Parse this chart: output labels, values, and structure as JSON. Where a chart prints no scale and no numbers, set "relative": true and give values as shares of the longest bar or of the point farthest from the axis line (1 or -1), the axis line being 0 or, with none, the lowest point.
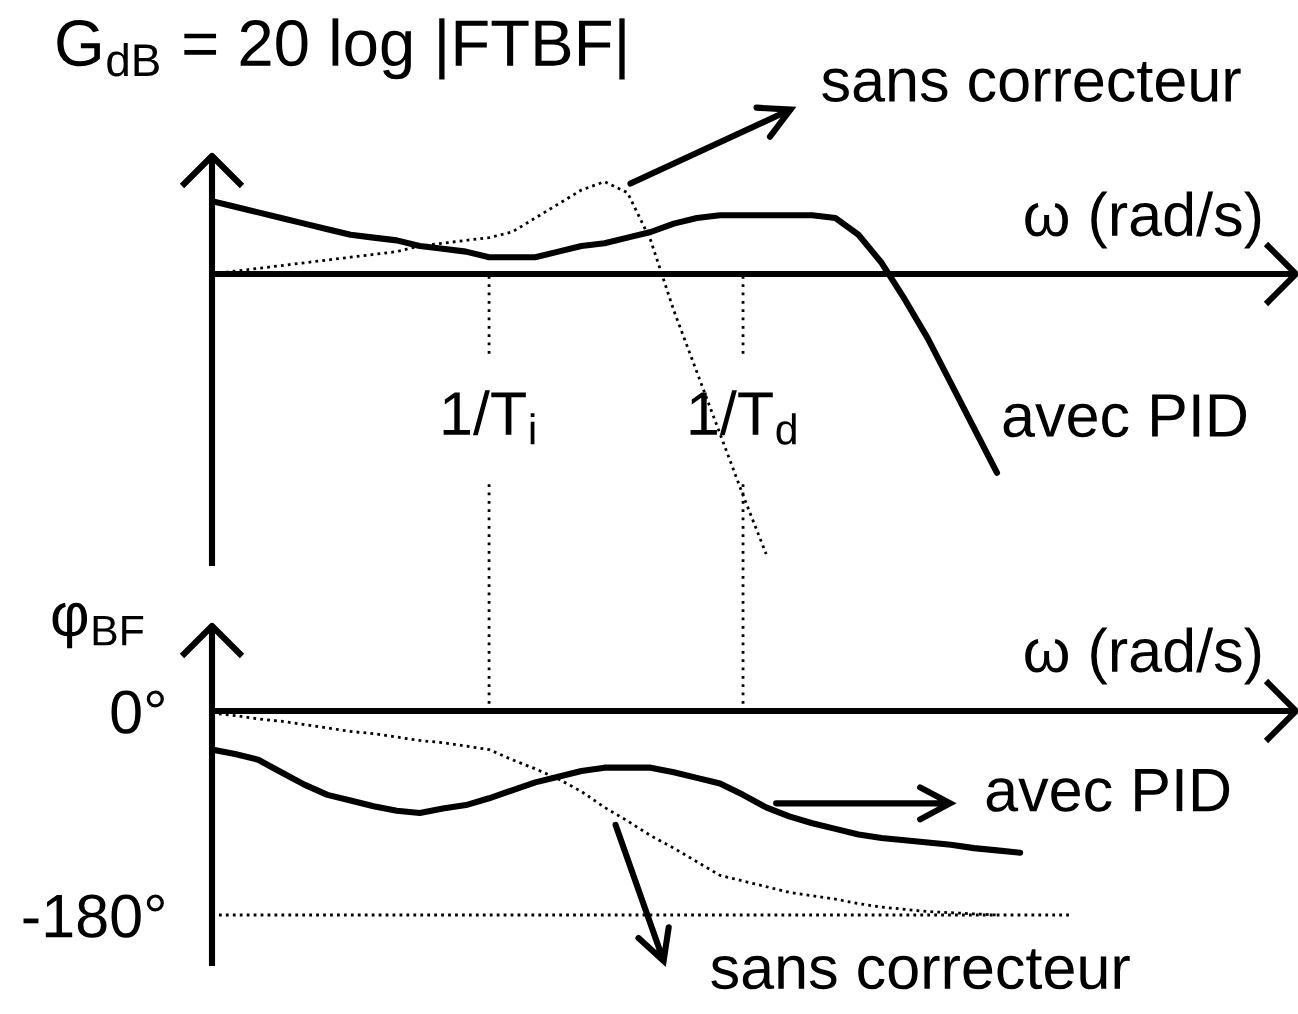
{
  "chart_data": [
    {
      "type": "line",
      "ylabel": "G$_{dB}$ = 20 log |FTBF|",
      "xlabel": "ω (rad/s)",
      "relative": true,
      "grid": "x",
      "tick_labels": "x",
      "annotations": [
        "sans correcteur",
        "avec PID"
      ],
      "categories": [
        null,
        null,
        null,
        null,
        null,
        null,
        null,
        null,
        null,
        null,
        null,
        null,
        "1/T$_{i}$",
        null,
        null,
        null,
        null,
        null,
        null,
        null,
        null,
        null,
        null,
        "1/T$_{d}$",
        null,
        null,
        null,
        null,
        null,
        null,
        null,
        null,
        null,
        null,
        null,
        null
      ],
      "series": [
        {
          "color": "#000000",
          "line_style": "solid",
          "values": [
            0.26,
            0.24,
            0.22,
            0.2,
            0.18,
            0.16,
            0.14,
            0.13,
            0.12,
            0.1,
            0.09,
            0.08,
            0.06,
            0.06,
            0.06,
            0.08,
            0.1,
            0.11,
            0.13,
            0.15,
            0.18,
            0.2,
            0.21,
            0.21,
            0.21,
            0.21,
            0.21,
            0.2,
            0.14,
            0.04,
            -0.09,
            -0.23,
            -0.39,
            -0.55,
            -0.71,
            null
          ]
        },
        {
          "color": "#000000",
          "line_style": "dotted",
          "values": [
            0,
            0.01,
            0.02,
            0.03,
            0.04,
            0.05,
            0.06,
            0.07,
            0.08,
            0.1,
            0.11,
            0.12,
            0.13,
            0.15,
            0.2,
            0.25,
            0.3,
            0.33,
            0.29,
            0.12,
            -0.13,
            -0.35,
            -0.57,
            -0.79,
            -1,
            null,
            null,
            null,
            null,
            null,
            null,
            null,
            null,
            null,
            null,
            null
          ]
        }
      ]
    },
    {
      "type": "line",
      "ylabel": "φ$_{BF}$",
      "xlabel": "ω (rad/s)",
      "tick_labels": "y",
      "ylim": [
        -225,
        75
      ],
      "yticks": [
        {
          "value": 0,
          "label": "0°"
        },
        {
          "value": -180,
          "label": "-180°"
        }
      ],
      "ref_lines": [
        {
          "axis": "y",
          "value": -180,
          "color": "#000000",
          "line_style": "dotted"
        }
      ],
      "annotations": [
        "avec PID",
        "sans correcteur"
      ],
      "categories": [
        null,
        null,
        null,
        null,
        null,
        null,
        null,
        null,
        null,
        null,
        null,
        null,
        null,
        null,
        null,
        null,
        null,
        null,
        null,
        null,
        null,
        null,
        null,
        null,
        null,
        null,
        null,
        null,
        null,
        null,
        null,
        null,
        null,
        null,
        null,
        null
      ],
      "series": [
        {
          "color": "#000000",
          "line_style": "solid",
          "values": [
            -34,
            -38,
            -43,
            -54,
            -65,
            -74,
            -79,
            -84,
            -88,
            -90,
            -86,
            -83,
            -77,
            -70,
            -63,
            -58,
            -53,
            -50,
            -50,
            -50,
            -54,
            -59,
            -64,
            -74,
            -85,
            -93,
            -99,
            -104,
            -109,
            -112,
            -114,
            -116,
            -118,
            -121,
            -123,
            -125
          ]
        },
        {
          "color": "#000000",
          "line_style": "dotted",
          "values": [
            -2,
            -4,
            -7,
            -9,
            -12,
            -15,
            -18,
            -20,
            -23,
            -26,
            -28,
            -31,
            -34,
            -43,
            -51,
            -60,
            -71,
            -85,
            -97,
            -110,
            -121,
            -133,
            -145,
            -150,
            -155,
            -160,
            -163,
            -166,
            -170,
            -173,
            -175,
            -177,
            -178,
            -179,
            -180,
            null
          ]
        }
      ]
    }
  ]
}
